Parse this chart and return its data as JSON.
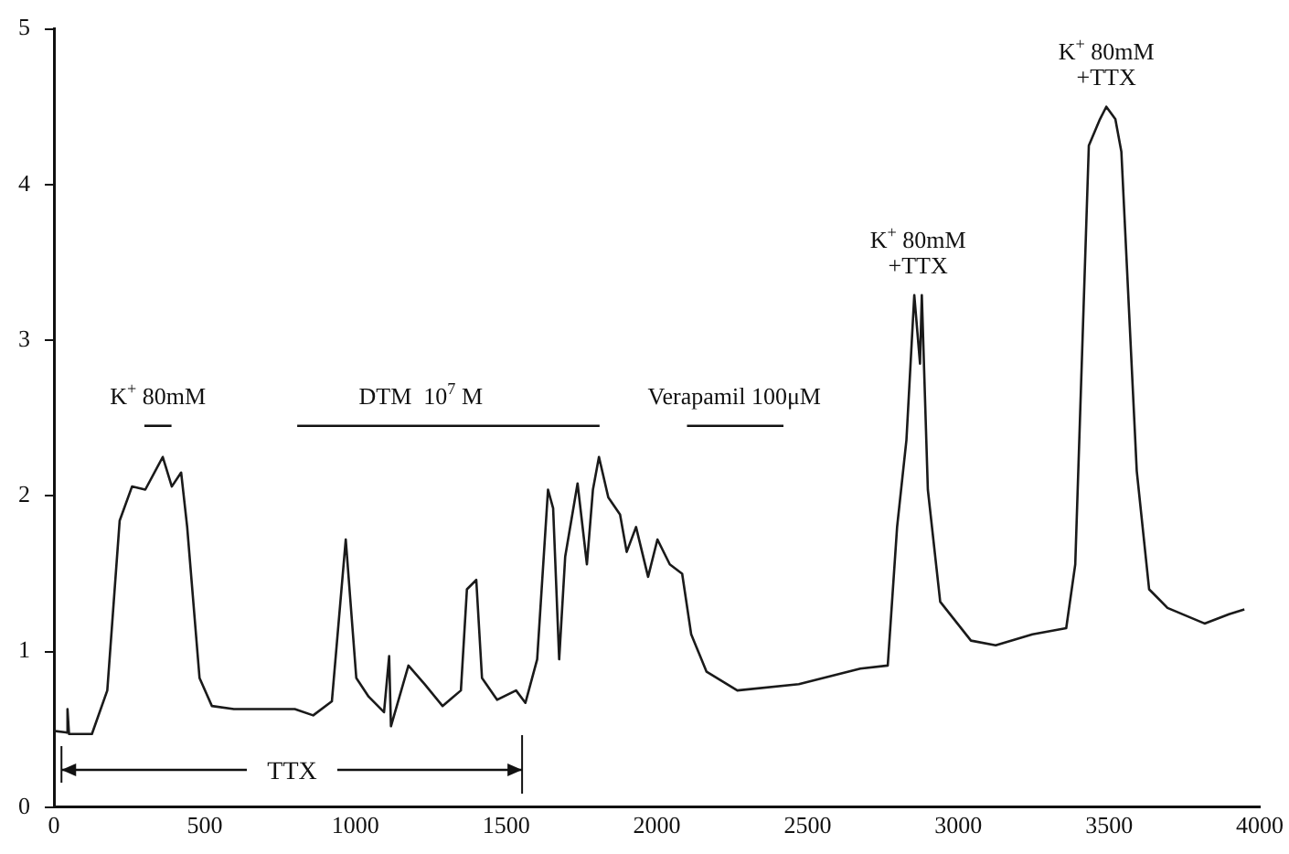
{
  "chart_data": {
    "type": "line",
    "x": [
      0,
      40,
      45,
      50,
      126,
      177,
      218,
      259,
      303,
      361,
      391,
      422,
      442,
      483,
      524,
      597,
      799,
      860,
      922,
      968,
      1003,
      1044,
      1095,
      1112,
      1118,
      1176,
      1230,
      1289,
      1350,
      1370,
      1401,
      1420,
      1470,
      1533,
      1564,
      1603,
      1639,
      1656,
      1676,
      1696,
      1737,
      1768,
      1788,
      1808,
      1839,
      1878,
      1900,
      1931,
      1971,
      2002,
      2043,
      2084,
      2114,
      2165,
      2267,
      2471,
      2675,
      2766,
      2797,
      2828,
      2854,
      2873,
      2879,
      2899,
      2940,
      3042,
      3124,
      3246,
      3358,
      3388,
      3433,
      3470,
      3491,
      3521,
      3541,
      3592,
      3633,
      3694,
      3817,
      3898,
      3949
    ],
    "series": [
      {
        "type": "line",
        "color": "#111111",
        "x": [
          300,
          390
        ],
        "values": [
          2.45,
          2.45
        ]
      },
      {
        "type": "line",
        "color": "#111111",
        "x": [
          807,
          1810
        ],
        "values": [
          2.45,
          2.45
        ]
      },
      {
        "type": "line",
        "color": "#111111",
        "x": [
          2100,
          2420
        ],
        "values": [
          2.45,
          2.45
        ]
      },
      {
        "type": "line",
        "color": "#111111",
        "x": [
          25,
          640,
          790,
          940,
          1553
        ],
        "values": [
          0.24,
          0.24,
          null,
          0.24,
          0.24
        ]
      },
      {
        "color": "#1a1a1a",
        "values": [
          0.49,
          0.48,
          0.63,
          0.47,
          0.47,
          0.75,
          1.84,
          2.06,
          2.04,
          2.25,
          2.06,
          2.15,
          1.8,
          0.83,
          0.65,
          0.63,
          0.63,
          0.59,
          0.68,
          1.72,
          0.83,
          0.71,
          0.61,
          0.97,
          0.52,
          0.91,
          0.79,
          0.65,
          0.75,
          1.4,
          1.46,
          0.83,
          0.69,
          0.75,
          0.67,
          0.95,
          2.04,
          1.92,
          0.95,
          1.61,
          2.08,
          1.56,
          2.04,
          2.25,
          1.99,
          1.88,
          1.64,
          1.8,
          1.48,
          1.72,
          1.56,
          1.5,
          1.11,
          0.87,
          0.75,
          0.79,
          0.89,
          0.91,
          1.8,
          2.36,
          3.29,
          2.85,
          3.29,
          2.04,
          1.32,
          1.07,
          1.04,
          1.11,
          1.15,
          1.56,
          4.25,
          4.42,
          4.5,
          4.42,
          4.21,
          2.16,
          1.4,
          1.28,
          1.18,
          1.24,
          1.27
        ]
      }
    ],
    "xlim": [
      0,
      4000
    ],
    "xticks": [
      0,
      500,
      1000,
      1500,
      2000,
      2500,
      3000,
      3500,
      4000
    ],
    "ylim": [
      0,
      5
    ],
    "yticks": [
      0,
      1,
      2,
      3,
      4,
      5
    ],
    "grid": false,
    "legend": false,
    "marker": "none",
    "line_style": "solid",
    "annotations": [
      {
        "text": "K$^{+}$ 80mM",
        "x": 345,
        "y": 2.45
      },
      {
        "text": "DTM  10$^{7}$ M",
        "x": 1217,
        "y": 2.45
      },
      {
        "text": "Verapamil 100μM",
        "x": 2257,
        "y": 2.45
      },
      "TTX",
      {
        "text": "K$^{+}$ 80mM\n+TTX",
        "x": 2866,
        "y": 3.29
      },
      {
        "text": "K$^{+}$ 80mM\n+TTX",
        "x": 3491,
        "y": 4.5
      }
    ]
  }
}
